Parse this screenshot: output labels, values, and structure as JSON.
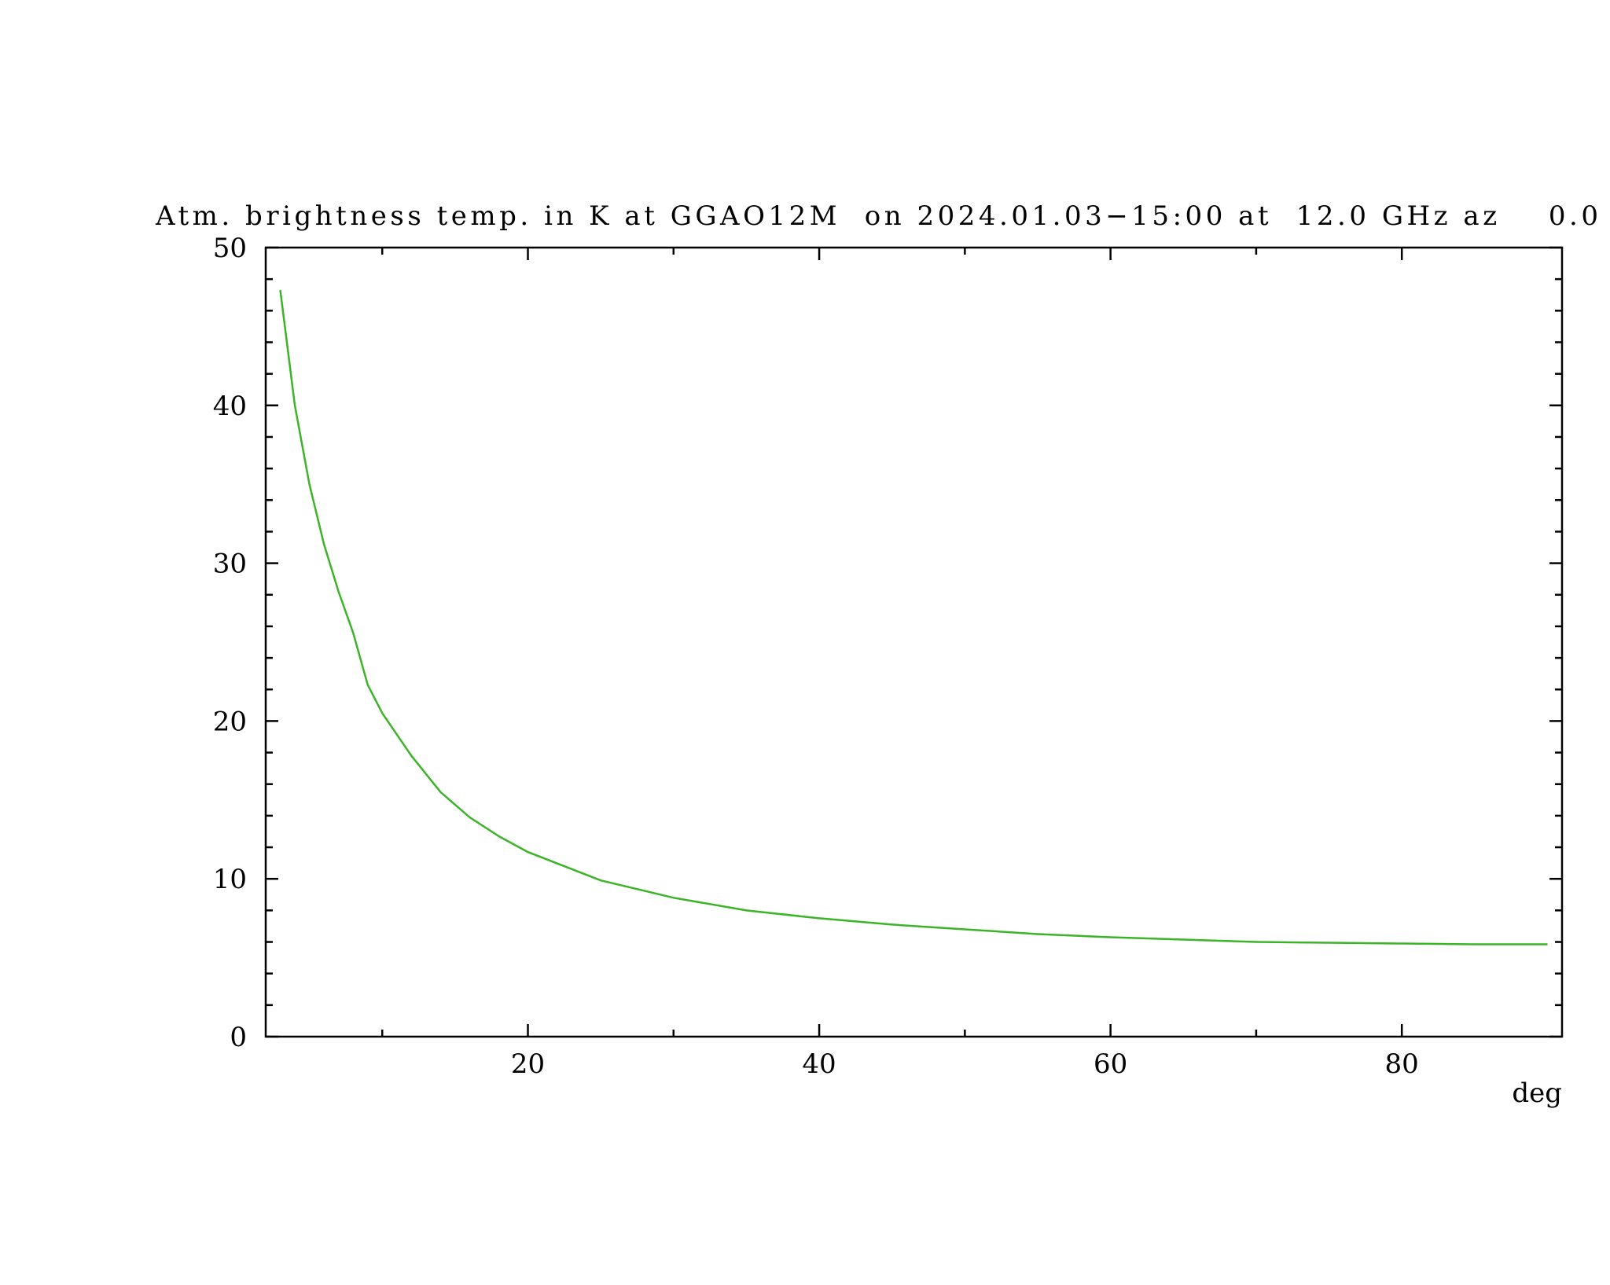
{
  "chart_data": {
    "type": "line",
    "title": "Atm. brightness temp. in K at GGAO12M  on 2024.01.03−15:00 at  12.0 GHz az    0.0",
    "x_label": "deg",
    "series": [
      {
        "color": "#3cb428",
        "x": [
          3,
          4,
          5,
          6,
          7,
          8,
          9,
          10,
          12,
          14,
          16,
          18,
          20,
          25,
          30,
          35,
          40,
          45,
          50,
          55,
          60,
          65,
          70,
          75,
          80,
          85,
          90
        ],
        "values": [
          47.3,
          40,
          35,
          31.2,
          28.2,
          25.6,
          22.3,
          20.5,
          17.8,
          15.5,
          13.9,
          12.7,
          11.7,
          9.9,
          8.8,
          8.0,
          7.5,
          7.1,
          6.8,
          6.5,
          6.3,
          6.15,
          6.0,
          5.95,
          5.9,
          5.85,
          5.85
        ]
      }
    ],
    "xlim": [
      2,
      91
    ],
    "xticks": [
      20,
      40,
      60,
      80
    ],
    "xminorticks": [
      10,
      30,
      50,
      70
    ],
    "ylim": [
      0,
      50
    ],
    "yticks": [
      0,
      10,
      20,
      30,
      40,
      50
    ],
    "yminorticks": [
      2,
      4,
      6,
      8,
      12,
      14,
      16,
      18,
      22,
      24,
      26,
      28,
      32,
      34,
      36,
      38,
      42,
      44,
      46,
      48
    ]
  }
}
